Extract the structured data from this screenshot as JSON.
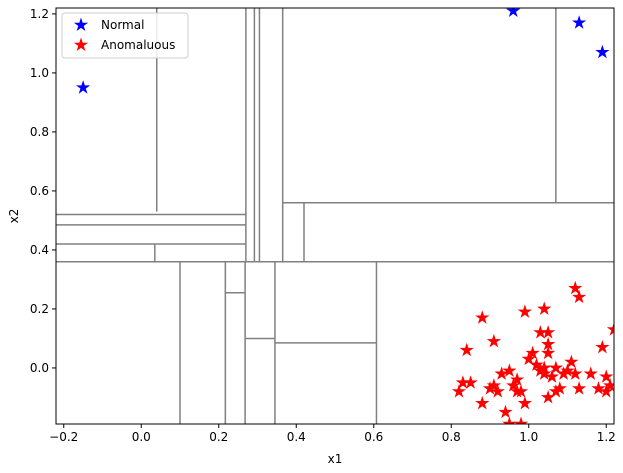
{
  "chart_data": {
    "type": "scatter",
    "xlabel": "x1",
    "ylabel": "x2",
    "xlim": [
      -0.22,
      1.22
    ],
    "ylim": [
      -0.19,
      1.22
    ],
    "xticks": [
      -0.2,
      0.0,
      0.2,
      0.4,
      0.6,
      0.8,
      1.0,
      1.2
    ],
    "yticks": [
      0.0,
      0.2,
      0.4,
      0.6,
      0.8,
      1.0,
      1.2
    ],
    "xtick_labels": [
      "−0.2",
      "0.0",
      "0.2",
      "0.4",
      "0.6",
      "0.8",
      "1.0",
      "1.2"
    ],
    "ytick_labels": [
      "0.0",
      "0.2",
      "0.4",
      "0.6",
      "0.8",
      "1.0",
      "1.2"
    ],
    "legend_position": "top-left",
    "partition_color": "#808080",
    "series": [
      {
        "name": "Normal",
        "color": "#0000ff",
        "marker": "star",
        "points": [
          [
            -0.15,
            0.95
          ],
          [
            0.96,
            1.21
          ],
          [
            1.13,
            1.17
          ],
          [
            1.19,
            1.07
          ]
        ]
      },
      {
        "name": "Anomaluous",
        "color": "#ff0000",
        "marker": "star",
        "points": [
          [
            0.82,
            -0.08
          ],
          [
            0.83,
            -0.05
          ],
          [
            0.84,
            0.06
          ],
          [
            0.85,
            -0.05
          ],
          [
            0.88,
            0.17
          ],
          [
            0.88,
            -0.12
          ],
          [
            0.9,
            -0.07
          ],
          [
            0.91,
            0.09
          ],
          [
            0.91,
            -0.06
          ],
          [
            0.92,
            -0.08
          ],
          [
            0.93,
            -0.02
          ],
          [
            0.94,
            -0.15
          ],
          [
            0.95,
            -0.01
          ],
          [
            0.95,
            -0.19
          ],
          [
            0.96,
            -0.06
          ],
          [
            0.97,
            -0.08
          ],
          [
            0.97,
            -0.04
          ],
          [
            0.98,
            -0.08
          ],
          [
            0.98,
            -0.19
          ],
          [
            0.99,
            -0.12
          ],
          [
            0.99,
            0.19
          ],
          [
            1.0,
            0.03
          ],
          [
            1.01,
            0.05
          ],
          [
            1.02,
            0.01
          ],
          [
            1.03,
            -0.01
          ],
          [
            1.03,
            0.12
          ],
          [
            1.04,
            0.0
          ],
          [
            1.04,
            0.2
          ],
          [
            1.04,
            -0.02
          ],
          [
            1.05,
            0.05
          ],
          [
            1.05,
            0.08
          ],
          [
            1.05,
            0.12
          ],
          [
            1.05,
            -0.1
          ],
          [
            1.06,
            -0.03
          ],
          [
            1.07,
            -0.08
          ],
          [
            1.07,
            0.0
          ],
          [
            1.08,
            -0.07
          ],
          [
            1.09,
            -0.02
          ],
          [
            1.1,
            -0.01
          ],
          [
            1.11,
            0.02
          ],
          [
            1.12,
            -0.02
          ],
          [
            1.12,
            0.27
          ],
          [
            1.13,
            0.24
          ],
          [
            1.13,
            -0.07
          ],
          [
            1.16,
            -0.02
          ],
          [
            1.18,
            -0.07
          ],
          [
            1.19,
            0.07
          ],
          [
            1.2,
            -0.03
          ],
          [
            1.2,
            -0.08
          ],
          [
            1.21,
            -0.06
          ],
          [
            1.22,
            0.13
          ]
        ]
      }
    ],
    "partition_segments": [
      [
        -0.22,
        0.36,
        1.22,
        0.36
      ],
      [
        0.04,
        0.53,
        0.04,
        1.22
      ],
      [
        -0.22,
        0.52,
        0.27,
        0.52
      ],
      [
        -0.22,
        0.485,
        0.27,
        0.485
      ],
      [
        -0.22,
        0.42,
        0.27,
        0.42
      ],
      [
        0.035,
        0.36,
        0.035,
        0.42
      ],
      [
        0.27,
        0.36,
        0.27,
        1.22
      ],
      [
        0.292,
        0.36,
        0.292,
        1.22
      ],
      [
        0.305,
        0.36,
        0.305,
        1.22
      ],
      [
        0.365,
        0.36,
        0.365,
        1.22
      ],
      [
        0.365,
        0.56,
        1.22,
        0.56
      ],
      [
        0.42,
        0.36,
        0.42,
        0.56
      ],
      [
        1.07,
        0.56,
        1.07,
        1.22
      ],
      [
        0.1,
        -0.19,
        0.1,
        0.36
      ],
      [
        0.217,
        -0.19,
        0.217,
        0.36
      ],
      [
        0.217,
        0.255,
        0.268,
        0.255
      ],
      [
        0.268,
        -0.19,
        0.268,
        0.36
      ],
      [
        0.268,
        0.1,
        0.345,
        0.1
      ],
      [
        0.345,
        -0.19,
        0.345,
        0.36
      ],
      [
        0.345,
        0.085,
        0.607,
        0.085
      ],
      [
        0.607,
        -0.19,
        0.607,
        0.36
      ]
    ]
  }
}
